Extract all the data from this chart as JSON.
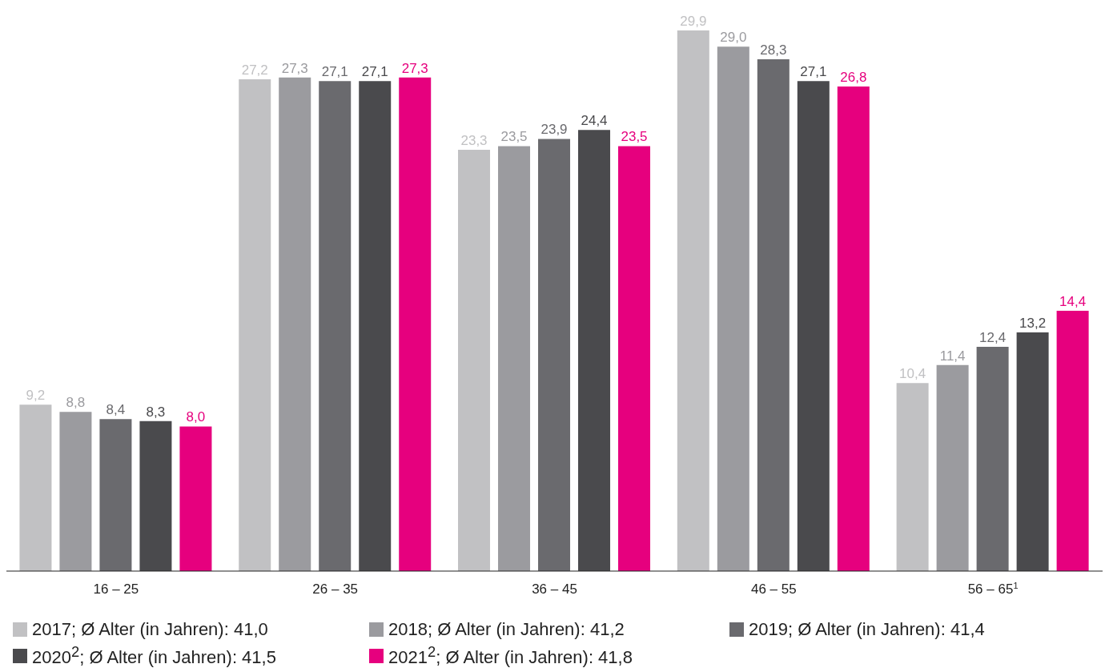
{
  "chart_data": {
    "type": "bar",
    "categories": [
      "16 – 25",
      "26 – 35",
      "36 – 45",
      "46 – 55",
      "56 – 65$^{1}$"
    ],
    "series": [
      {
        "name": "2017; Ø  Alter (in Jahren): 41,0",
        "color": "#c1c1c3",
        "values": [
          9.2,
          27.2,
          23.3,
          29.9,
          10.4
        ],
        "value_labels": [
          "9,2",
          "27,2",
          "23,3",
          "29,9",
          "10,4"
        ]
      },
      {
        "name": "2018; Ø  Alter (in Jahren): 41,2",
        "color": "#9b9b9f",
        "values": [
          8.8,
          27.3,
          23.5,
          29.0,
          11.4
        ],
        "value_labels": [
          "8,8",
          "27,3",
          "23,5",
          "29,0",
          "11,4"
        ]
      },
      {
        "name": "2019; Ø  Alter (in Jahren): 41,4",
        "color": "#6a6a6e",
        "values": [
          8.4,
          27.1,
          23.9,
          28.3,
          12.4
        ],
        "value_labels": [
          "8,4",
          "27,1",
          "23,9",
          "28,3",
          "12,4"
        ]
      },
      {
        "name": "2020$^{2}$; Ø  Alter (in Jahren): 41,5",
        "color": "#4a4a4d",
        "values": [
          8.3,
          27.1,
          24.4,
          27.1,
          13.2
        ],
        "value_labels": [
          "8,3",
          "27,1",
          "24,4",
          "27,1",
          "13,2"
        ]
      },
      {
        "name": "2021$^{2}$; Ø  Alter (in Jahren): 41,8",
        "color": "#e6007e",
        "values": [
          8.0,
          27.3,
          23.5,
          26.8,
          14.4
        ],
        "value_labels": [
          "8,0",
          "27,3",
          "23,5",
          "26,8",
          "14,4"
        ]
      }
    ],
    "legend": "bottom"
  }
}
